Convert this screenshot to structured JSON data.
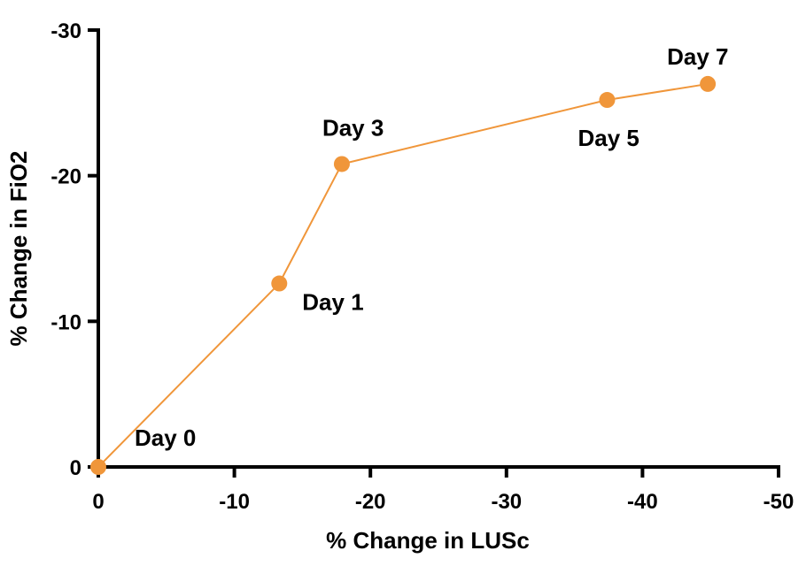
{
  "chart_data": {
    "type": "line",
    "title": "",
    "xlabel": "% Change in LUSc",
    "ylabel": "% Change in FiO2",
    "x_ticks": [
      "0",
      "-10",
      "-20",
      "-30",
      "-40",
      "-50"
    ],
    "y_ticks": [
      "0",
      "-10",
      "-20",
      "-30"
    ],
    "x_tick_values": [
      0,
      -10,
      -20,
      -30,
      -40,
      -50
    ],
    "y_tick_values": [
      0,
      -10,
      -20,
      -30
    ],
    "xlim": [
      0,
      -50
    ],
    "ylim": [
      0,
      -30
    ],
    "x_axis_reversed": true,
    "y_axis_reversed": true,
    "grid": false,
    "legend": "none",
    "series": [
      {
        "color": "#F0963A",
        "points": [
          {
            "label": "Day 0",
            "x": 0,
            "y": 0
          },
          {
            "label": "Day 1",
            "x": -13.3,
            "y": -12.6
          },
          {
            "label": "Day 3",
            "x": -17.9,
            "y": -20.8
          },
          {
            "label": "Day 5",
            "x": -37.4,
            "y": -25.2
          },
          {
            "label": "Day 7",
            "x": -44.8,
            "y": -26.3
          }
        ]
      }
    ]
  }
}
